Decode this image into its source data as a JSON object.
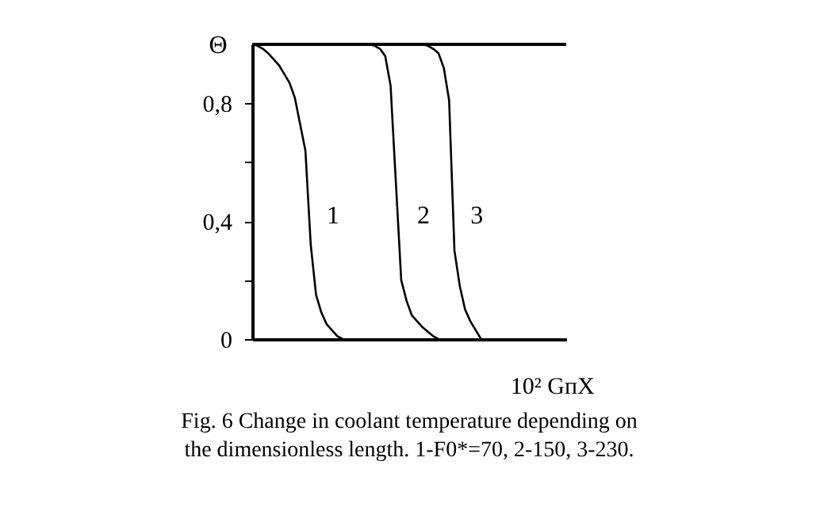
{
  "chart_data": {
    "type": "line",
    "ylabel": "Θ",
    "xlabel": "10² GпX",
    "annotations": [
      "Fig. 6 Change in coolant temperature depending on the dimensionless length. 1-F0*=70, 2-150, 3-230."
    ],
    "categories": [
      null,
      null,
      null,
      null,
      null,
      null,
      null,
      null,
      null,
      null,
      null,
      null,
      null,
      null,
      null,
      null,
      null,
      null,
      null,
      null,
      null,
      null,
      null,
      null,
      null,
      null,
      null,
      null,
      null,
      null,
      null,
      null,
      null,
      null,
      null,
      null,
      null,
      null,
      null,
      null,
      null,
      null,
      null,
      null,
      null,
      null,
      null,
      null,
      null,
      null,
      null,
      null,
      null,
      null,
      null,
      null,
      null,
      null,
      null,
      null
    ],
    "series": [
      {
        "name": "1",
        "color": "#000000",
        "values": [
          1.0,
          0.995,
          0.985,
          0.97,
          0.95,
          0.93,
          0.9,
          0.87,
          0.82,
          0.73,
          0.64,
          0.32,
          0.15,
          0.09,
          0.05,
          0.03,
          0.01,
          0,
          null,
          null,
          null,
          null,
          null,
          null,
          null,
          null,
          null,
          null,
          null,
          null,
          null,
          null,
          null,
          null,
          null,
          null,
          null,
          null,
          null,
          null,
          null,
          null,
          null,
          null,
          null,
          null,
          null,
          null,
          null,
          null,
          null,
          null,
          null,
          null,
          null,
          null,
          null,
          null,
          null,
          null
        ]
      },
      {
        "name": "2",
        "color": "#000000",
        "values": [
          null,
          null,
          null,
          null,
          null,
          null,
          null,
          null,
          null,
          null,
          null,
          null,
          null,
          null,
          null,
          null,
          null,
          null,
          null,
          null,
          null,
          1.0,
          1.0,
          0.995,
          0.985,
          0.96,
          0.86,
          0.53,
          0.2,
          0.13,
          0.08,
          0.06,
          0.04,
          0.025,
          0.01,
          0,
          null,
          null,
          null,
          null,
          null,
          null,
          null,
          null,
          null,
          null,
          null,
          null,
          null,
          null,
          null,
          null,
          null,
          null,
          null,
          null,
          null,
          null,
          null,
          null
        ]
      },
      {
        "name": "3",
        "color": "#000000",
        "values": [
          null,
          null,
          null,
          null,
          null,
          null,
          null,
          null,
          null,
          null,
          null,
          null,
          null,
          null,
          null,
          null,
          null,
          null,
          null,
          null,
          null,
          null,
          null,
          null,
          null,
          null,
          null,
          null,
          null,
          null,
          null,
          1.0,
          1.0,
          0.995,
          0.985,
          0.97,
          0.92,
          0.81,
          0.3,
          0.18,
          0.1,
          0.06,
          0.03,
          0,
          null,
          null,
          null,
          null,
          null,
          null,
          null,
          null,
          null,
          null,
          null,
          null,
          null,
          null,
          null,
          null
        ]
      }
    ],
    "ylim": [
      0,
      1
    ],
    "yticks": [
      0,
      {
        "value": 0.2,
        "label": null
      },
      {
        "value": 0.4,
        "label": "0,4"
      },
      {
        "value": 0.6,
        "label": null
      },
      {
        "value": 0.8,
        "label": "0,8"
      }
    ],
    "tick_labels": "y",
    "grid": false,
    "marker": "none",
    "line_style": "solid"
  }
}
